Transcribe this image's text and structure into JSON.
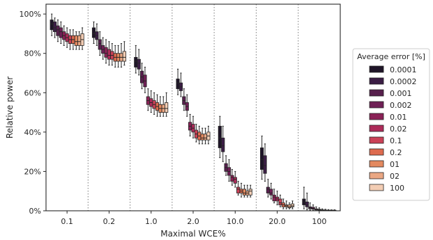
{
  "chart_data": {
    "type": "box",
    "xlabel": "Maximal WCE%",
    "ylabel": "Relative power",
    "ylim": [
      0,
      1.05
    ],
    "categories": [
      "0.1",
      "0.2",
      "1.0",
      "2.0",
      "10.0",
      "20.0",
      "100"
    ],
    "y_ticks": [
      0,
      0.2,
      0.4,
      0.6,
      0.8,
      1.0
    ],
    "y_tick_labels": [
      "0%",
      "20%",
      "40%",
      "60%",
      "80%",
      "100%"
    ],
    "legend": {
      "title": "Average error [%]",
      "placement": "right"
    },
    "series": [
      {
        "name": "0.0001",
        "color": "#1f1528"
      },
      {
        "name": "0.0002",
        "color": "#3b1d45"
      },
      {
        "name": "0.001",
        "color": "#571f4d"
      },
      {
        "name": "0.002",
        "color": "#6f1f55"
      },
      {
        "name": "0.01",
        "color": "#8a2156"
      },
      {
        "name": "0.02",
        "color": "#ad2b59"
      },
      {
        "name": "0.1",
        "color": "#cb4157"
      },
      {
        "name": "0.2",
        "color": "#dd6b4f"
      },
      {
        "name": "01",
        "color": "#e3895f"
      },
      {
        "name": "02",
        "color": "#eaa783"
      },
      {
        "name": "100",
        "color": "#f3cdb4"
      }
    ],
    "box_stats": [
      [
        [
          0.89,
          0.92,
          0.95,
          0.97,
          1.0
        ],
        [
          0.88,
          0.91,
          0.93,
          0.96,
          0.98
        ],
        [
          0.86,
          0.89,
          0.92,
          0.94,
          0.97
        ],
        [
          0.85,
          0.88,
          0.91,
          0.93,
          0.96
        ],
        [
          0.84,
          0.87,
          0.89,
          0.91,
          0.94
        ],
        [
          0.83,
          0.86,
          0.88,
          0.9,
          0.93
        ],
        [
          0.82,
          0.85,
          0.87,
          0.89,
          0.92
        ],
        [
          0.82,
          0.85,
          0.87,
          0.89,
          0.92
        ],
        [
          0.82,
          0.84,
          0.86,
          0.89,
          0.91
        ],
        [
          0.82,
          0.84,
          0.86,
          0.89,
          0.91
        ],
        [
          0.82,
          0.84,
          0.87,
          0.9,
          0.93
        ]
      ],
      [
        [
          0.85,
          0.88,
          0.9,
          0.93,
          0.96
        ],
        [
          0.84,
          0.87,
          0.89,
          0.91,
          0.95
        ],
        [
          0.79,
          0.82,
          0.85,
          0.87,
          0.91
        ],
        [
          0.77,
          0.8,
          0.82,
          0.84,
          0.88
        ],
        [
          0.75,
          0.78,
          0.8,
          0.83,
          0.87
        ],
        [
          0.74,
          0.77,
          0.79,
          0.82,
          0.86
        ],
        [
          0.74,
          0.77,
          0.79,
          0.81,
          0.85
        ],
        [
          0.73,
          0.76,
          0.78,
          0.8,
          0.84
        ],
        [
          0.73,
          0.76,
          0.78,
          0.8,
          0.84
        ],
        [
          0.73,
          0.76,
          0.78,
          0.8,
          0.85
        ],
        [
          0.74,
          0.76,
          0.78,
          0.81,
          0.86
        ]
      ],
      [
        [
          0.7,
          0.73,
          0.76,
          0.78,
          0.84
        ],
        [
          0.69,
          0.72,
          0.75,
          0.77,
          0.82
        ],
        [
          0.62,
          0.65,
          0.68,
          0.71,
          0.75
        ],
        [
          0.6,
          0.63,
          0.66,
          0.69,
          0.73
        ],
        [
          0.51,
          0.54,
          0.56,
          0.58,
          0.62
        ],
        [
          0.5,
          0.53,
          0.55,
          0.57,
          0.61
        ],
        [
          0.49,
          0.52,
          0.54,
          0.56,
          0.6
        ],
        [
          0.48,
          0.51,
          0.53,
          0.55,
          0.59
        ],
        [
          0.48,
          0.5,
          0.52,
          0.54,
          0.58
        ],
        [
          0.48,
          0.5,
          0.52,
          0.54,
          0.58
        ],
        [
          0.48,
          0.5,
          0.52,
          0.55,
          0.6
        ]
      ],
      [
        [
          0.59,
          0.62,
          0.65,
          0.67,
          0.72
        ],
        [
          0.58,
          0.61,
          0.63,
          0.65,
          0.7
        ],
        [
          0.51,
          0.54,
          0.56,
          0.58,
          0.62
        ],
        [
          0.48,
          0.51,
          0.53,
          0.55,
          0.59
        ],
        [
          0.38,
          0.41,
          0.43,
          0.45,
          0.49
        ],
        [
          0.37,
          0.4,
          0.42,
          0.44,
          0.48
        ],
        [
          0.35,
          0.37,
          0.39,
          0.41,
          0.44
        ],
        [
          0.34,
          0.36,
          0.38,
          0.4,
          0.43
        ],
        [
          0.34,
          0.36,
          0.37,
          0.39,
          0.42
        ],
        [
          0.34,
          0.36,
          0.37,
          0.39,
          0.42
        ],
        [
          0.34,
          0.36,
          0.38,
          0.4,
          0.43
        ]
      ],
      [
        [
          0.27,
          0.32,
          0.37,
          0.43,
          0.48
        ],
        [
          0.25,
          0.3,
          0.33,
          0.37,
          0.43
        ],
        [
          0.18,
          0.2,
          0.22,
          0.24,
          0.28
        ],
        [
          0.15,
          0.18,
          0.2,
          0.22,
          0.26
        ],
        [
          0.13,
          0.15,
          0.17,
          0.18,
          0.21
        ],
        [
          0.12,
          0.14,
          0.16,
          0.17,
          0.2
        ],
        [
          0.08,
          0.09,
          0.11,
          0.12,
          0.15
        ],
        [
          0.07,
          0.09,
          0.1,
          0.11,
          0.14
        ],
        [
          0.07,
          0.08,
          0.09,
          0.11,
          0.13
        ],
        [
          0.07,
          0.08,
          0.09,
          0.1,
          0.13
        ],
        [
          0.07,
          0.08,
          0.1,
          0.11,
          0.13
        ]
      ],
      [
        [
          0.16,
          0.21,
          0.26,
          0.32,
          0.38
        ],
        [
          0.15,
          0.19,
          0.23,
          0.28,
          0.34
        ],
        [
          0.07,
          0.09,
          0.11,
          0.12,
          0.16
        ],
        [
          0.06,
          0.08,
          0.09,
          0.11,
          0.14
        ],
        [
          0.04,
          0.05,
          0.07,
          0.08,
          0.11
        ],
        [
          0.03,
          0.05,
          0.06,
          0.07,
          0.1
        ],
        [
          0.02,
          0.03,
          0.04,
          0.06,
          0.08
        ],
        [
          0.01,
          0.02,
          0.03,
          0.04,
          0.06
        ],
        [
          0.01,
          0.02,
          0.025,
          0.03,
          0.05
        ],
        [
          0.01,
          0.015,
          0.02,
          0.03,
          0.04
        ],
        [
          0.01,
          0.02,
          0.025,
          0.035,
          0.05
        ]
      ],
      [
        [
          0.01,
          0.03,
          0.045,
          0.06,
          0.12
        ],
        [
          0.005,
          0.02,
          0.03,
          0.045,
          0.09
        ],
        [
          0.003,
          0.01,
          0.015,
          0.02,
          0.04
        ],
        [
          0.002,
          0.008,
          0.012,
          0.018,
          0.03
        ],
        [
          0.0,
          0.004,
          0.006,
          0.01,
          0.02
        ],
        [
          0.0,
          0.003,
          0.005,
          0.008,
          0.015
        ],
        [
          0.0,
          0.002,
          0.003,
          0.005,
          0.01
        ],
        [
          0.0,
          0.001,
          0.002,
          0.004,
          0.008
        ],
        [
          0.0,
          0.001,
          0.002,
          0.003,
          0.006
        ],
        [
          0.0,
          0.001,
          0.002,
          0.003,
          0.005
        ],
        [
          0.0,
          0.001,
          0.002,
          0.003,
          0.005
        ]
      ]
    ]
  }
}
